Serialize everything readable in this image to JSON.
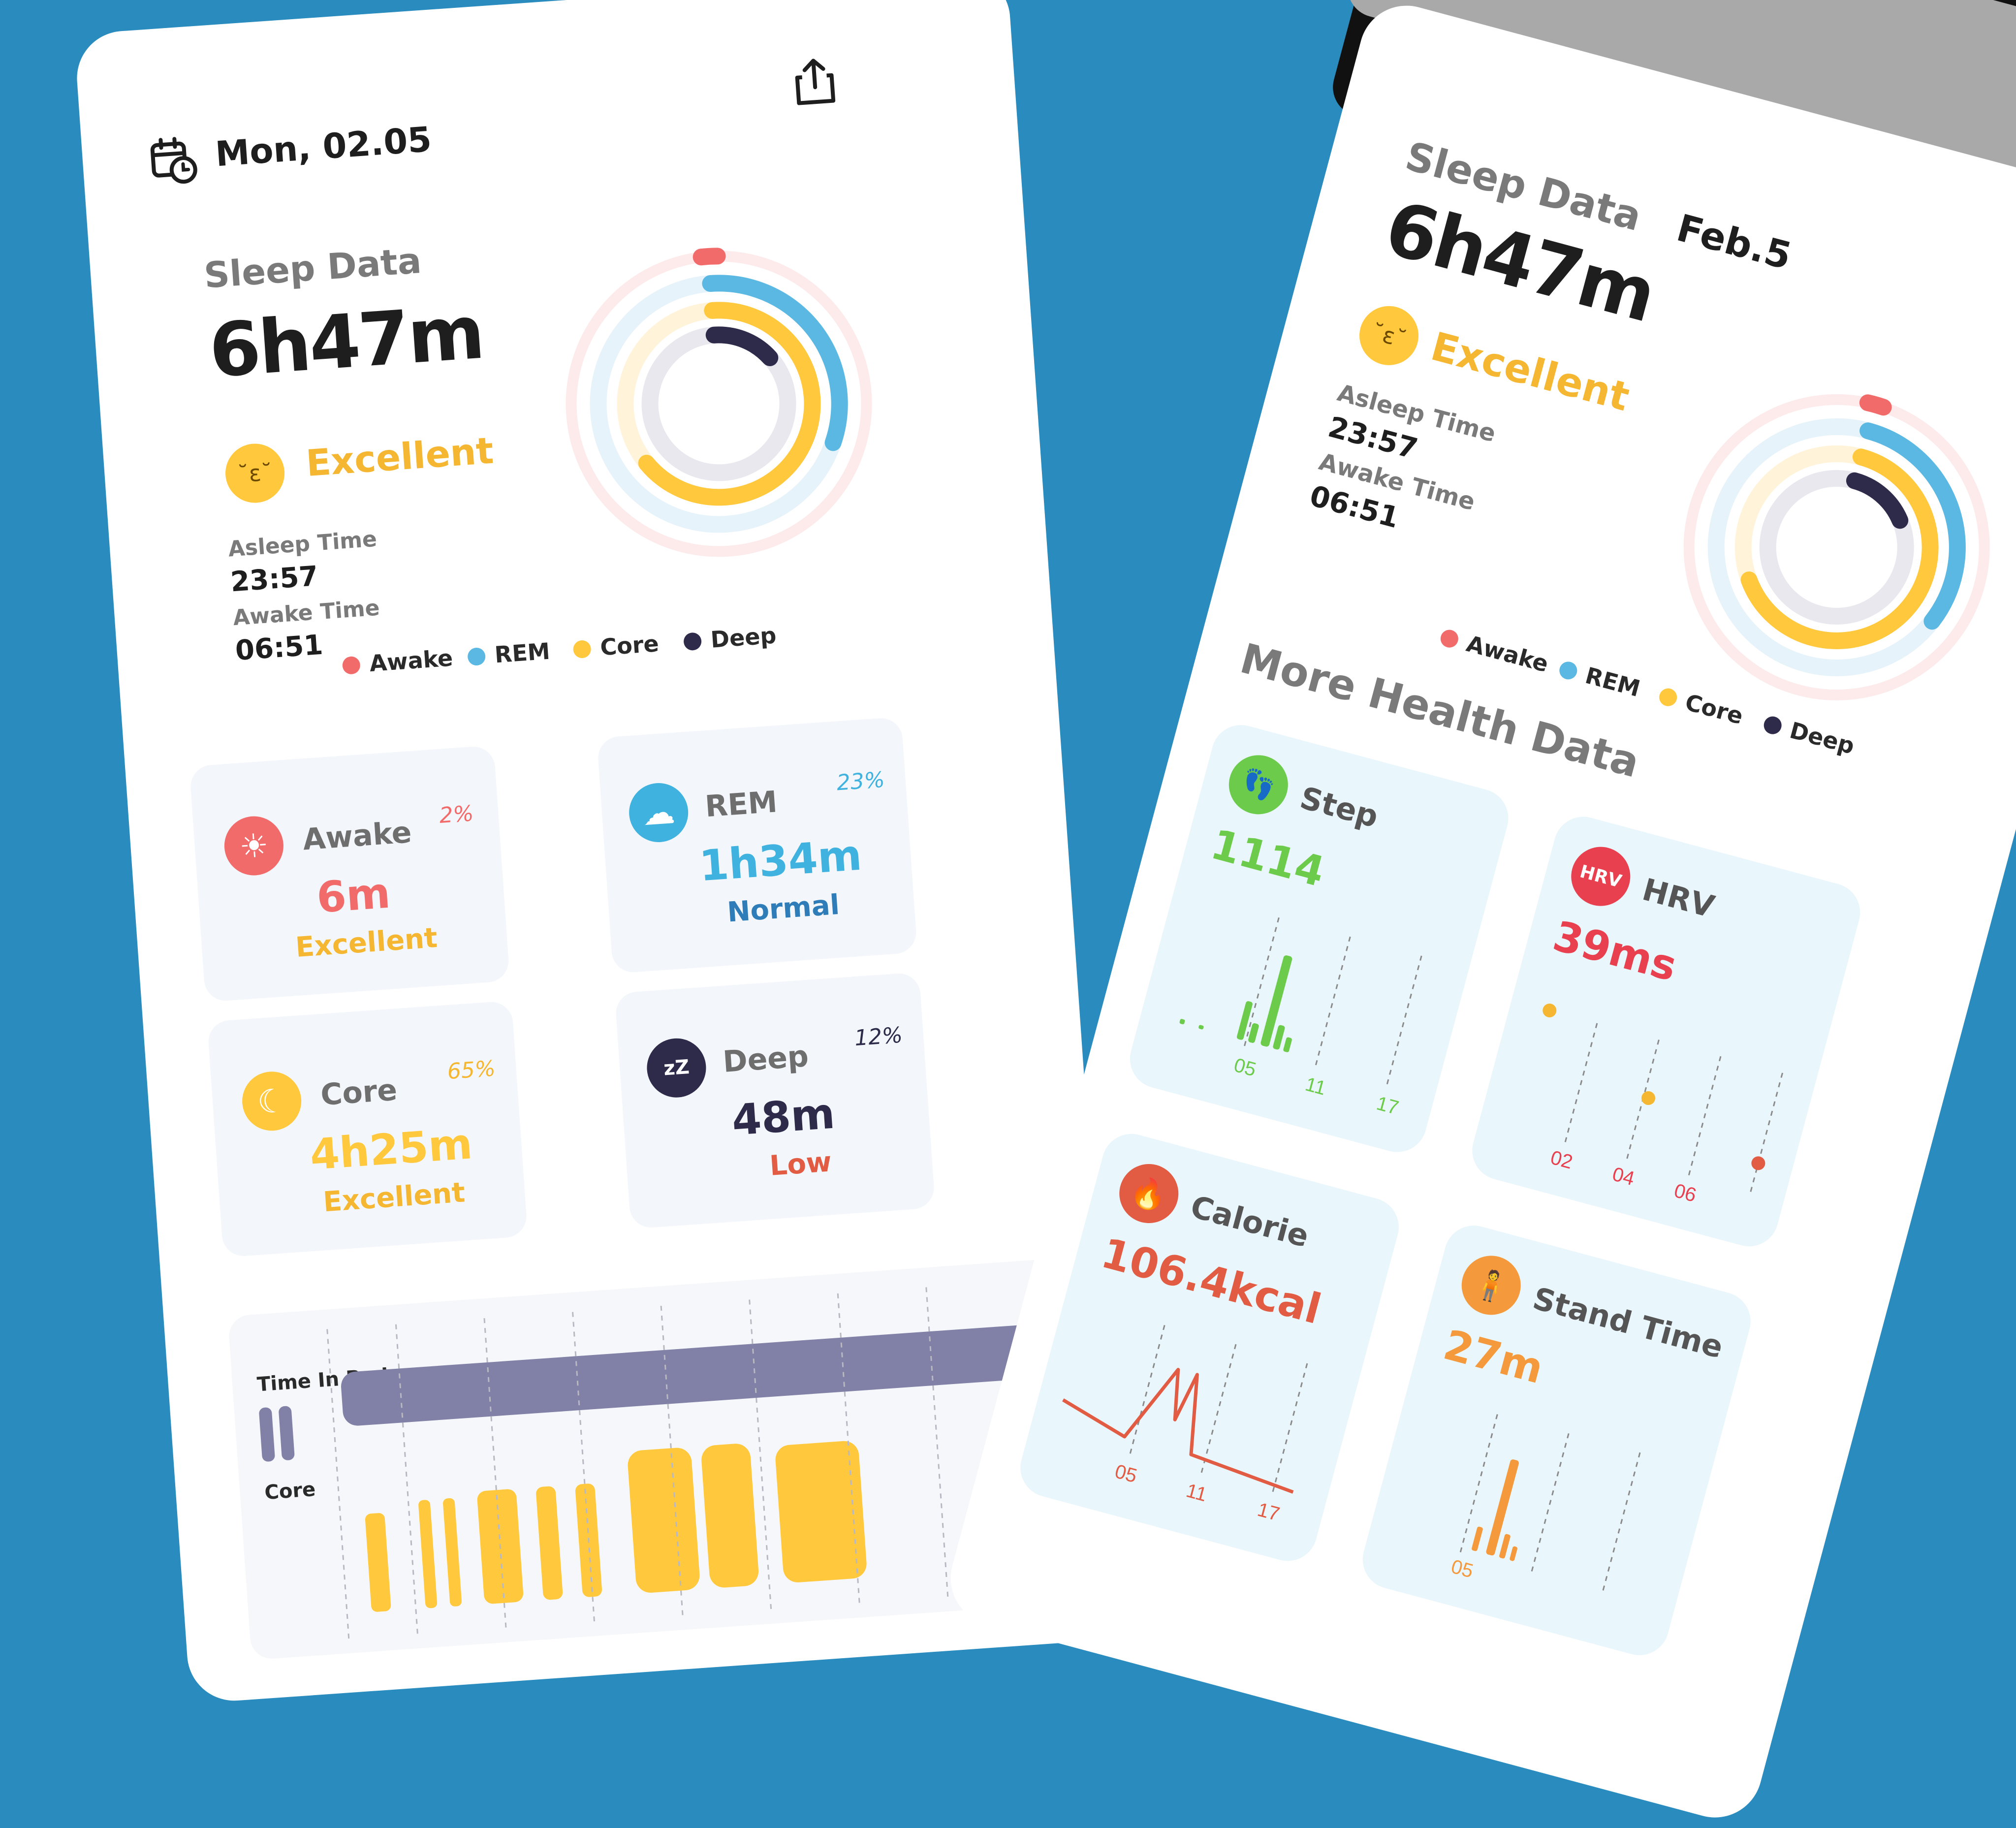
{
  "left": {
    "date": "Mon, 02.05",
    "sleep_title": "Sleep Data",
    "duration": "6h47m",
    "quality": "Excellent",
    "asleep_label": "Asleep Time",
    "asleep_value": "23:57",
    "awake_label": "Awake Time",
    "awake_value": "06:51",
    "legend": [
      "Awake",
      "REM",
      "Core",
      "Deep"
    ],
    "stages": {
      "awake": {
        "name": "Awake",
        "pct": "2%",
        "value": "6m",
        "status": "Excellent"
      },
      "rem": {
        "name": "REM",
        "pct": "23%",
        "value": "1h34m",
        "status": "Normal"
      },
      "core": {
        "name": "Core",
        "pct": "65%",
        "value": "4h25m",
        "status": "Excellent"
      },
      "deep": {
        "name": "Deep",
        "pct": "12%",
        "value": "48m",
        "status": "Low"
      }
    },
    "timeline": {
      "time_in_bed": "Time In Bed",
      "core": "Core"
    }
  },
  "right": {
    "date": "Feb.5",
    "sleep_title": "Sleep Data",
    "duration": "6h47m",
    "quality": "Excellent",
    "asleep_label": "Asleep Time",
    "asleep_value": "23:57",
    "awake_label": "Awake Time",
    "awake_value": "06:51",
    "legend": [
      "Awake",
      "REM",
      "Core",
      "Deep"
    ],
    "more_title": "More Health Data",
    "step": {
      "name": "Step",
      "value": "1114",
      "ticks": [
        "05",
        "11",
        "17"
      ]
    },
    "hrv": {
      "name": "HRV",
      "badge": "HRV",
      "value": "39ms",
      "ticks": [
        "02",
        "04",
        "06"
      ]
    },
    "calorie": {
      "name": "Calorie",
      "value": "106.4kcal",
      "ticks": [
        "05",
        "11",
        "17"
      ]
    },
    "stand": {
      "name": "Stand Time",
      "value": "27m",
      "ticks": [
        "05"
      ]
    }
  },
  "colors": {
    "awake": "#F26B6B",
    "rem": "#5BB8E2",
    "core": "#FFC83D",
    "deep": "#2E2A4A",
    "step": "#6DCB4B",
    "hrv": "#E8404F",
    "calorie": "#E25B43",
    "stand": "#F49A3C",
    "background": "#2A8BBF"
  },
  "icons": {
    "calendar": "calendar-clock-icon",
    "share": "share-icon",
    "awake": "sun-icon",
    "rem": "cloud-icon",
    "core": "moon-icon",
    "deep": "zzz-icon",
    "step": "footprints-icon",
    "calorie": "flame-icon",
    "stand": "person-icon",
    "emoji": "kiss-emoji-icon"
  }
}
